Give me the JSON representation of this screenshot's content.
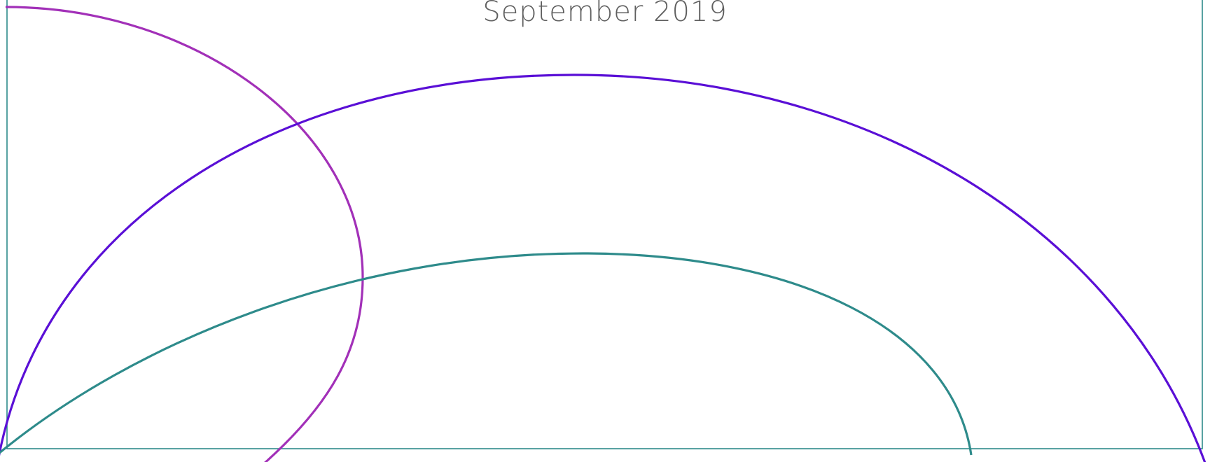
{
  "header": {
    "date_label": "September 2019"
  },
  "colors": {
    "text": "#5f5f5f",
    "frame": "#2e8b8b",
    "arc_magenta": "#a230b8",
    "arc_violet": "#5a0fd6",
    "arc_teal": "#2e8b8b"
  }
}
